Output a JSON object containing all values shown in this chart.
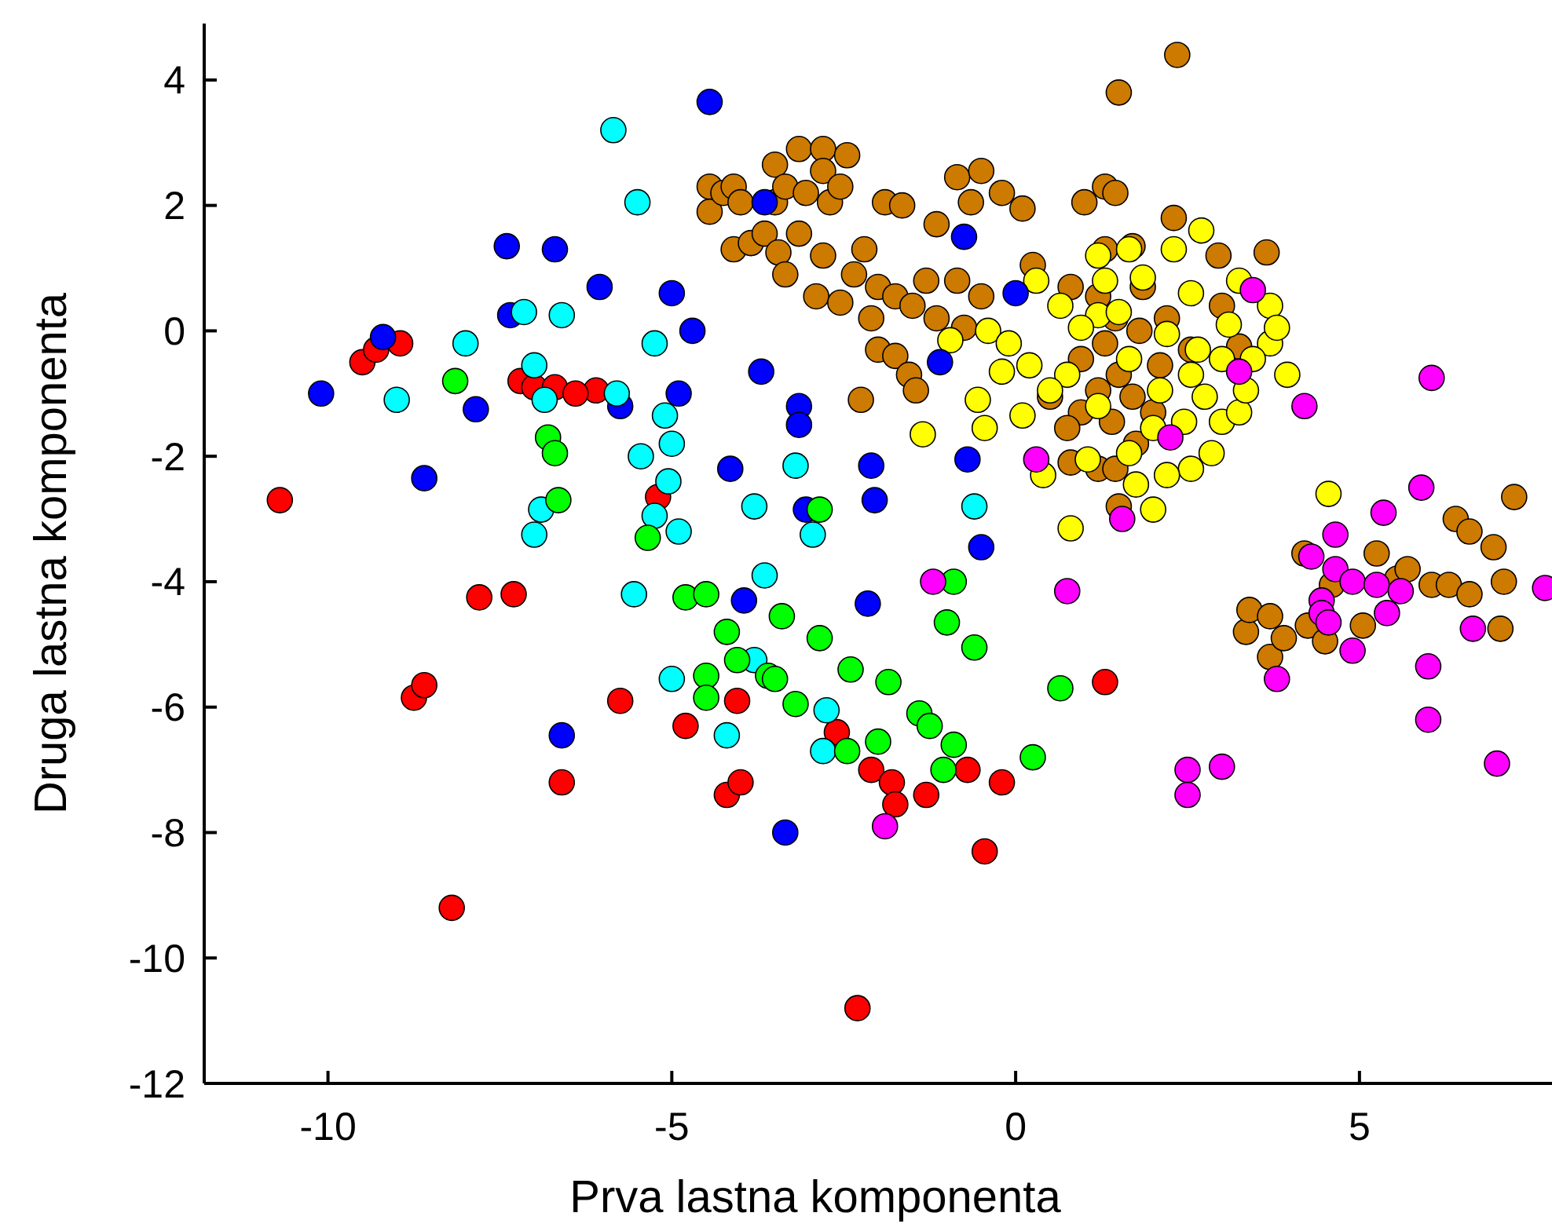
{
  "chart_data": {
    "type": "scatter",
    "xlabel": "Prva lastna komponenta",
    "ylabel": "Druga lastna komponenta",
    "xlim": [
      -11.8,
      7.8
    ],
    "ylim": [
      -12,
      4.9
    ],
    "xticks": [
      -10,
      -5,
      0,
      5
    ],
    "yticks": [
      -12,
      -10,
      -8,
      -6,
      -4,
      -2,
      0,
      2,
      4
    ],
    "grid": false,
    "marker": "circle",
    "series": [
      {
        "color": "#cc7a00",
        "x": [
          -4.45,
          -4.45,
          -4.25,
          -4.1,
          -4.0,
          -4.1,
          -3.85,
          -3.65,
          -3.5,
          -3.5,
          -3.35,
          -3.15,
          -3.05,
          -2.8,
          -2.8,
          -2.7,
          -2.45,
          -2.55,
          -3.45,
          -3.35,
          -3.15,
          -2.8,
          -2.9,
          -2.55,
          -2.35,
          -2.2,
          -2.0,
          -1.75,
          -2.1,
          -1.9,
          -1.65,
          -2.0,
          -1.75,
          -2.25,
          -1.55,
          -1.5,
          -1.3,
          -1.15,
          -1.15,
          -1.45,
          -0.85,
          -0.65,
          -0.5,
          -0.2,
          0.1,
          0.25,
          -0.85,
          -0.75,
          -0.5,
          1.5,
          2.35,
          1.0,
          1.3,
          1.45,
          2.3,
          1.3,
          1.7,
          2.95,
          3.65,
          0.8,
          1.2,
          1.45,
          1.8,
          0.95,
          1.3,
          1.5,
          1.7,
          2.0,
          1.2,
          0.95,
          1.4,
          1.75,
          0.8,
          1.2,
          1.45,
          2.2,
          2.55,
          2.1,
          3.0,
          3.25,
          0.75,
          0.5,
          1.85,
          1.5,
          3.35,
          3.4,
          3.7,
          3.7,
          3.9,
          4.2,
          4.25,
          4.5,
          4.6,
          5.05,
          5.25,
          5.55,
          5.7,
          6.05,
          6.3,
          6.4,
          6.6,
          6.6,
          6.95,
          7.1,
          7.05,
          7.25
        ],
        "values": [
          2.3,
          1.9,
          2.2,
          2.3,
          2.05,
          1.3,
          1.4,
          1.55,
          2.05,
          2.65,
          2.3,
          2.9,
          2.2,
          2.9,
          2.55,
          2.05,
          2.8,
          2.3,
          1.25,
          0.9,
          1.55,
          1.2,
          0.55,
          0.45,
          0.9,
          1.3,
          0.7,
          0.55,
          0.2,
          2.05,
          2.0,
          -0.3,
          -0.4,
          -1.1,
          -0.7,
          0.4,
          0.8,
          1.7,
          0.2,
          -0.95,
          2.45,
          2.05,
          2.55,
          2.2,
          1.95,
          1.05,
          0.8,
          0.05,
          0.55,
          3.8,
          4.4,
          2.05,
          2.3,
          2.2,
          1.8,
          1.3,
          1.35,
          1.2,
          1.25,
          0.7,
          0.55,
          0.2,
          0.0,
          -0.45,
          -0.2,
          -0.7,
          -1.05,
          -1.3,
          -0.95,
          -1.3,
          -1.45,
          -1.8,
          -2.1,
          -2.2,
          -2.2,
          0.2,
          -0.3,
          -0.55,
          0.4,
          -0.25,
          -1.55,
          -1.05,
          0.7,
          -2.8,
          -4.8,
          -4.45,
          -5.2,
          -4.55,
          -4.9,
          -3.55,
          -4.7,
          -4.95,
          -4.05,
          -4.7,
          -3.55,
          -3.95,
          -3.8,
          -4.05,
          -4.05,
          -3.0,
          -3.2,
          -4.2,
          -3.45,
          -4.0,
          -4.75,
          -2.65
        ]
      },
      {
        "color": "#ffff00",
        "x": [
          -1.35,
          -0.55,
          -0.45,
          0.1,
          0.8,
          2.0,
          2.7,
          3.95,
          4.55,
          -0.95,
          -0.4,
          0.2,
          0.3,
          0.65,
          1.2,
          1.2,
          1.85,
          2.55,
          3.1,
          3.7,
          3.7,
          3.0,
          2.85,
          3.25,
          2.55,
          2.2,
          1.65,
          1.2,
          0.75,
          1.65,
          2.1,
          2.55,
          3.0,
          3.45,
          0.95,
          1.5,
          2.2,
          2.75,
          2.45,
          2.0,
          1.05,
          0.4,
          -0.1,
          -0.2,
          0.5,
          1.3,
          2.3,
          3.25,
          3.8,
          3.35,
          2.65,
          1.65,
          1.75
        ],
        "values": [
          -1.65,
          -1.1,
          -1.55,
          -1.35,
          -3.15,
          -2.85,
          1.6,
          -0.7,
          -2.6,
          -0.15,
          0.0,
          -0.55,
          0.8,
          0.4,
          1.2,
          0.25,
          0.85,
          0.6,
          0.1,
          0.4,
          -0.2,
          -1.45,
          -1.95,
          -1.3,
          -2.2,
          -2.3,
          -1.95,
          -1.2,
          -0.7,
          -0.45,
          -0.95,
          -0.7,
          -0.45,
          -0.45,
          0.05,
          0.3,
          -0.05,
          -1.05,
          -1.45,
          -1.55,
          -2.05,
          -2.3,
          -0.2,
          -0.65,
          -0.95,
          0.8,
          1.3,
          0.8,
          0.05,
          -0.95,
          -0.3,
          1.3,
          -2.45
        ]
      },
      {
        "color": "#ff0000",
        "x": [
          -10.7,
          -9.5,
          -9.3,
          -8.95,
          -8.75,
          -8.6,
          -8.2,
          -7.8,
          -7.3,
          -7.2,
          -7.0,
          -6.7,
          -6.1,
          -6.4,
          -6.6,
          -5.75,
          -5.2,
          -4.8,
          -4.2,
          -4.0,
          -4.05,
          -2.6,
          -2.3,
          -2.1,
          -1.8,
          -1.75,
          -1.3,
          -0.7,
          -0.45,
          -0.2,
          1.3
        ],
        "values": [
          -2.7,
          -0.5,
          -0.3,
          -0.2,
          -5.85,
          -5.65,
          -9.2,
          -4.25,
          -4.2,
          -0.8,
          -0.9,
          -0.9,
          -0.95,
          -1.0,
          -7.2,
          -5.9,
          -2.65,
          -6.3,
          -7.4,
          -7.2,
          -5.9,
          -6.4,
          -10.8,
          -7.0,
          -7.2,
          -7.55,
          -7.4,
          -7.0,
          -8.3,
          -7.2,
          -5.6
        ]
      },
      {
        "color": "#0000ff",
        "x": [
          -10.1,
          -9.2,
          -8.6,
          -7.85,
          -7.4,
          -7.35,
          -6.7,
          -6.6,
          -6.05,
          -5.75,
          -5.0,
          -4.9,
          -4.7,
          -4.45,
          -4.15,
          -3.95,
          -3.7,
          -3.65,
          -3.35,
          -3.15,
          -3.15,
          -3.05,
          -2.1,
          -2.05,
          -2.15,
          -1.1,
          -0.75,
          -0.7,
          -0.5,
          0.0
        ],
        "values": [
          -1.0,
          -0.1,
          -2.35,
          -1.25,
          1.35,
          0.25,
          1.3,
          -6.45,
          0.7,
          -1.2,
          0.6,
          -1.0,
          0.0,
          3.65,
          -2.2,
          -4.3,
          -0.65,
          2.05,
          -8.0,
          -1.2,
          -1.5,
          -2.85,
          -2.15,
          -2.7,
          -4.35,
          -0.5,
          1.5,
          -2.05,
          -3.45,
          0.6
        ]
      },
      {
        "color": "#00ffff",
        "x": [
          -9.0,
          -8.0,
          -7.15,
          -7.0,
          -7.0,
          -6.9,
          -6.85,
          -6.6,
          -5.85,
          -5.8,
          -5.55,
          -5.5,
          -5.45,
          -5.25,
          -5.25,
          -5.1,
          -5.05,
          -5.0,
          -5.0,
          -4.9,
          -4.2,
          -3.8,
          -3.8,
          -3.65,
          -3.2,
          -2.95,
          -2.8,
          -2.75,
          -0.6
        ],
        "values": [
          -1.1,
          -0.2,
          0.3,
          -0.55,
          -3.25,
          -2.85,
          -1.1,
          0.25,
          3.2,
          -1.0,
          -4.2,
          2.05,
          -2.0,
          -0.2,
          -2.95,
          -1.35,
          -2.4,
          -5.55,
          -1.8,
          -3.2,
          -6.45,
          -2.8,
          -5.25,
          -3.9,
          -2.15,
          -3.25,
          -6.7,
          -6.05,
          -2.8
        ]
      },
      {
        "color": "#00ff00",
        "x": [
          -8.15,
          -6.8,
          -6.65,
          -6.7,
          -5.35,
          -4.8,
          -4.5,
          -4.5,
          -4.5,
          -4.2,
          -4.05,
          -3.6,
          -3.5,
          -3.4,
          -3.2,
          -2.85,
          -2.85,
          -2.45,
          -2.4,
          -2.0,
          -1.85,
          -1.4,
          -1.25,
          -1.05,
          -0.9,
          -1.0,
          -0.9,
          -0.6,
          0.25,
          0.65
        ],
        "values": [
          -0.8,
          -1.7,
          -2.7,
          -1.95,
          -3.3,
          -4.25,
          -4.2,
          -5.5,
          -5.85,
          -4.8,
          -5.25,
          -5.5,
          -5.55,
          -4.55,
          -5.95,
          -2.85,
          -4.9,
          -6.7,
          -5.4,
          -6.55,
          -5.6,
          -6.1,
          -6.3,
          -7.0,
          -6.6,
          -4.65,
          -4.0,
          -5.05,
          -6.8,
          -5.7
        ]
      },
      {
        "color": "#ff00ff",
        "x": [
          -1.9,
          -1.2,
          0.3,
          0.75,
          1.55,
          2.25,
          2.5,
          2.5,
          3.0,
          3.25,
          3.45,
          3.8,
          4.2,
          4.3,
          4.45,
          4.45,
          4.55,
          4.65,
          4.65,
          4.9,
          4.9,
          5.25,
          5.35,
          5.4,
          5.6,
          5.9,
          6.0,
          6.0,
          6.05,
          6.65,
          7.0,
          7.7
        ],
        "values": [
          -7.9,
          -4.0,
          -2.05,
          -4.15,
          -3.0,
          -1.7,
          -7.4,
          -7.0,
          -6.95,
          -0.65,
          0.65,
          -5.55,
          -1.2,
          -3.6,
          -4.3,
          -4.5,
          -4.65,
          -3.25,
          -3.8,
          -4.0,
          -5.1,
          -4.05,
          -2.9,
          -4.5,
          -4.15,
          -2.5,
          -6.2,
          -5.35,
          -0.75,
          -4.75,
          -6.9,
          -4.1
        ]
      }
    ]
  }
}
